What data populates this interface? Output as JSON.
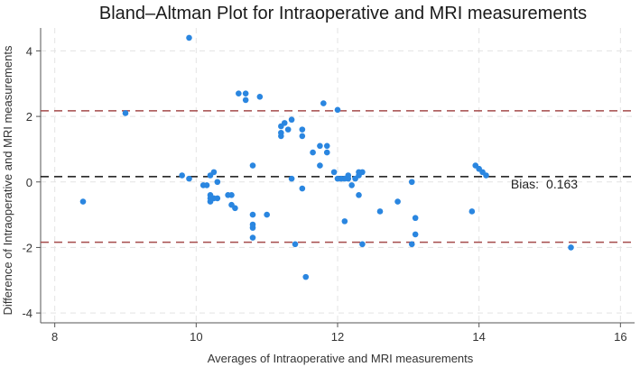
{
  "chart_data": {
    "type": "scatter",
    "title": "Bland–Altman Plot for Intraoperative and MRI measurements",
    "xlabel": "Averages of Intraoperative and MRI measurements",
    "ylabel": "Difference of Intraoperative and MRI measurements",
    "xlim": [
      7.8,
      16.2
    ],
    "ylim": [
      -4.3,
      4.7
    ],
    "xticks": [
      8,
      10,
      12,
      14,
      16
    ],
    "yticks": [
      -4,
      -2,
      0,
      2,
      4
    ],
    "grid": true,
    "colors": {
      "points": "#2a86e0",
      "bias_line": "#111111",
      "limit_lines": "#a54b4b",
      "grid": "#e3e3e3"
    },
    "reference_lines": [
      {
        "kind": "upper-limit",
        "y": 2.17
      },
      {
        "kind": "bias",
        "y": 0.163
      },
      {
        "kind": "lower-limit",
        "y": -1.84
      }
    ],
    "annotation": {
      "label": "Bias:",
      "value": "0.163",
      "x": 14.45,
      "y": -0.2
    },
    "points": [
      {
        "x": 8.4,
        "y": -0.6
      },
      {
        "x": 9.0,
        "y": 2.1
      },
      {
        "x": 9.8,
        "y": 0.2
      },
      {
        "x": 9.9,
        "y": 4.4
      },
      {
        "x": 9.9,
        "y": 0.1
      },
      {
        "x": 10.1,
        "y": -0.1
      },
      {
        "x": 10.15,
        "y": -0.1
      },
      {
        "x": 10.2,
        "y": 0.2
      },
      {
        "x": 10.2,
        "y": -0.4
      },
      {
        "x": 10.2,
        "y": -0.5
      },
      {
        "x": 10.2,
        "y": -0.6
      },
      {
        "x": 10.25,
        "y": 0.3
      },
      {
        "x": 10.25,
        "y": -0.5
      },
      {
        "x": 10.3,
        "y": 0.0
      },
      {
        "x": 10.3,
        "y": -0.5
      },
      {
        "x": 10.45,
        "y": -0.4
      },
      {
        "x": 10.5,
        "y": -0.4
      },
      {
        "x": 10.5,
        "y": -0.7
      },
      {
        "x": 10.55,
        "y": -0.8
      },
      {
        "x": 10.6,
        "y": 2.7
      },
      {
        "x": 10.7,
        "y": 2.7
      },
      {
        "x": 10.7,
        "y": 2.5
      },
      {
        "x": 10.8,
        "y": 0.5
      },
      {
        "x": 10.8,
        "y": -1.0
      },
      {
        "x": 10.8,
        "y": -1.3
      },
      {
        "x": 10.8,
        "y": -1.4
      },
      {
        "x": 10.8,
        "y": -1.7
      },
      {
        "x": 10.9,
        "y": 2.6
      },
      {
        "x": 11.0,
        "y": -1.0
      },
      {
        "x": 11.2,
        "y": 1.7
      },
      {
        "x": 11.2,
        "y": 1.5
      },
      {
        "x": 11.2,
        "y": 1.4
      },
      {
        "x": 11.25,
        "y": 1.8
      },
      {
        "x": 11.3,
        "y": 1.6
      },
      {
        "x": 11.35,
        "y": 1.9
      },
      {
        "x": 11.35,
        "y": 0.1
      },
      {
        "x": 11.4,
        "y": -1.9
      },
      {
        "x": 11.5,
        "y": 1.6
      },
      {
        "x": 11.5,
        "y": 1.4
      },
      {
        "x": 11.5,
        "y": -0.2
      },
      {
        "x": 11.55,
        "y": -2.9
      },
      {
        "x": 11.65,
        "y": 0.9
      },
      {
        "x": 11.75,
        "y": 1.1
      },
      {
        "x": 11.75,
        "y": 0.5
      },
      {
        "x": 11.8,
        "y": 2.4
      },
      {
        "x": 11.85,
        "y": 1.1
      },
      {
        "x": 11.85,
        "y": 0.9
      },
      {
        "x": 11.95,
        "y": 0.3
      },
      {
        "x": 12.0,
        "y": 2.2
      },
      {
        "x": 12.0,
        "y": 0.1
      },
      {
        "x": 12.05,
        "y": 0.1
      },
      {
        "x": 12.1,
        "y": 0.1
      },
      {
        "x": 12.1,
        "y": -1.2
      },
      {
        "x": 12.15,
        "y": 0.1
      },
      {
        "x": 12.15,
        "y": 0.2
      },
      {
        "x": 12.2,
        "y": -0.1
      },
      {
        "x": 12.25,
        "y": 0.1
      },
      {
        "x": 12.3,
        "y": 0.2
      },
      {
        "x": 12.3,
        "y": 0.3
      },
      {
        "x": 12.3,
        "y": -0.4
      },
      {
        "x": 12.35,
        "y": 0.3
      },
      {
        "x": 12.35,
        "y": -1.9
      },
      {
        "x": 12.6,
        "y": -0.9
      },
      {
        "x": 12.85,
        "y": -0.6
      },
      {
        "x": 13.05,
        "y": 0.0
      },
      {
        "x": 13.05,
        "y": -1.9
      },
      {
        "x": 13.1,
        "y": -1.1
      },
      {
        "x": 13.1,
        "y": -1.6
      },
      {
        "x": 13.9,
        "y": -0.9
      },
      {
        "x": 13.95,
        "y": 0.5
      },
      {
        "x": 14.0,
        "y": 0.4
      },
      {
        "x": 14.05,
        "y": 0.3
      },
      {
        "x": 14.1,
        "y": 0.2
      },
      {
        "x": 15.3,
        "y": -2.0
      }
    ]
  }
}
